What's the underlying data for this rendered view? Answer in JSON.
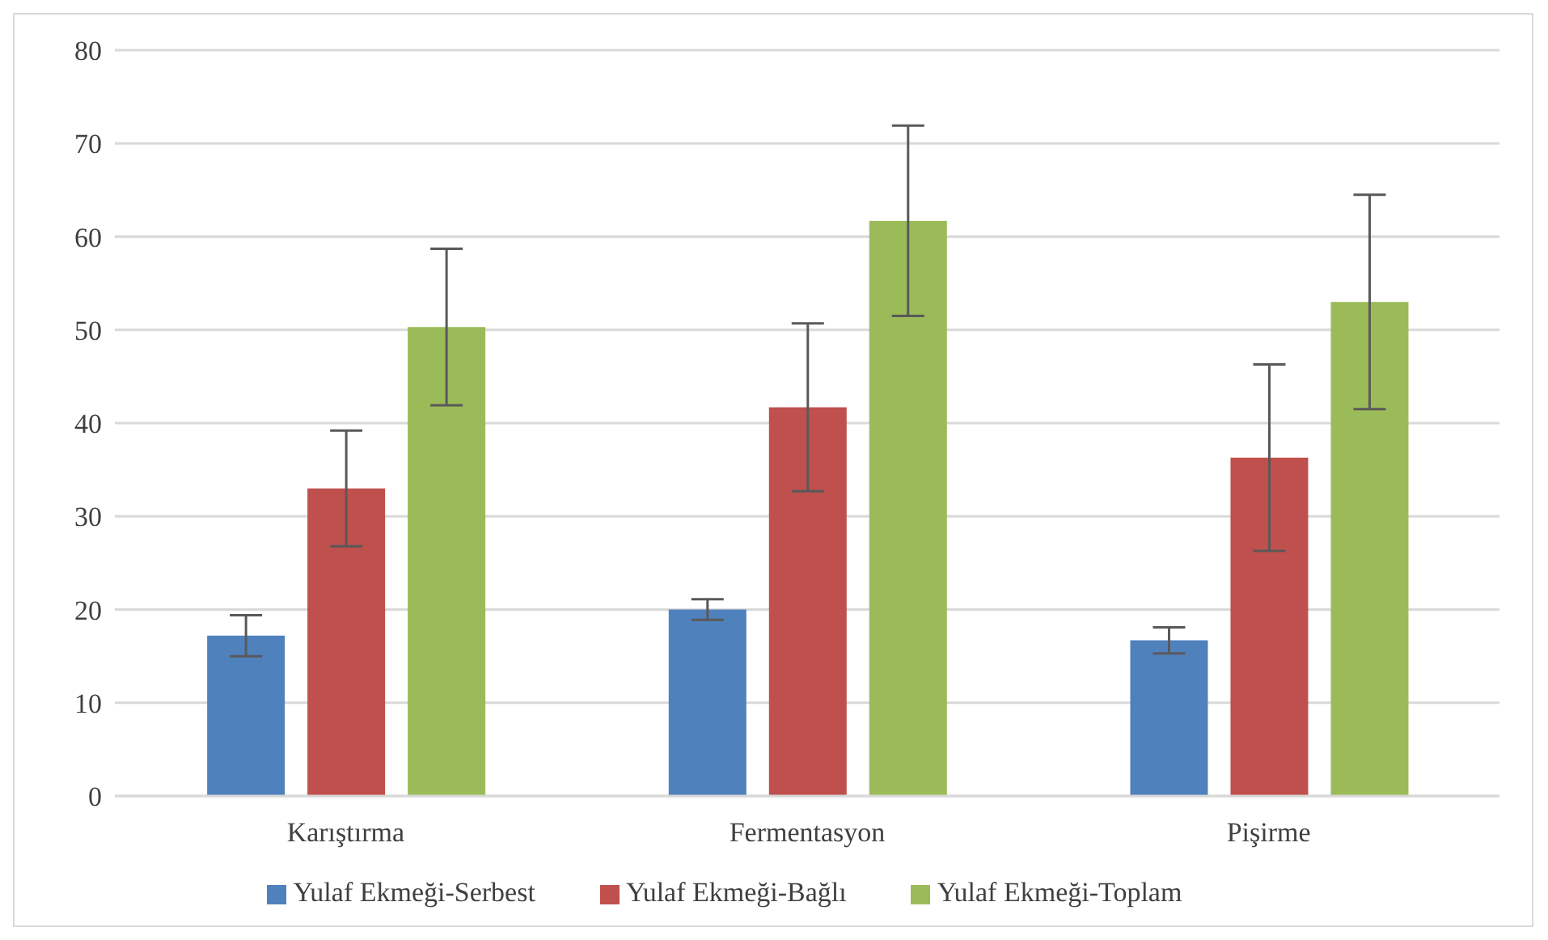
{
  "chart_data": {
    "type": "bar",
    "categories": [
      "Karıştırma",
      "Fermentasyon",
      "Pişirme"
    ],
    "series": [
      {
        "name": "Yulaf Ekmeği-Serbest",
        "color": "#4f81bd",
        "values": [
          17.2,
          20.0,
          16.7
        ],
        "errors": [
          2.2,
          1.1,
          1.4
        ]
      },
      {
        "name": "Yulaf Ekmeği-Bağlı",
        "color": "#c0504d",
        "values": [
          33.0,
          41.7,
          36.3
        ],
        "errors": [
          6.2,
          9.0,
          10.0
        ]
      },
      {
        "name": "Yulaf Ekmeği-Toplam",
        "color": "#9bbb59",
        "values": [
          50.3,
          61.7,
          53.0
        ],
        "errors": [
          8.4,
          10.2,
          11.5
        ]
      }
    ],
    "ylim": [
      0,
      80
    ],
    "yticks": [
      0,
      10,
      20,
      30,
      40,
      50,
      60,
      70,
      80
    ],
    "grid": "y",
    "legend": "bottom"
  }
}
